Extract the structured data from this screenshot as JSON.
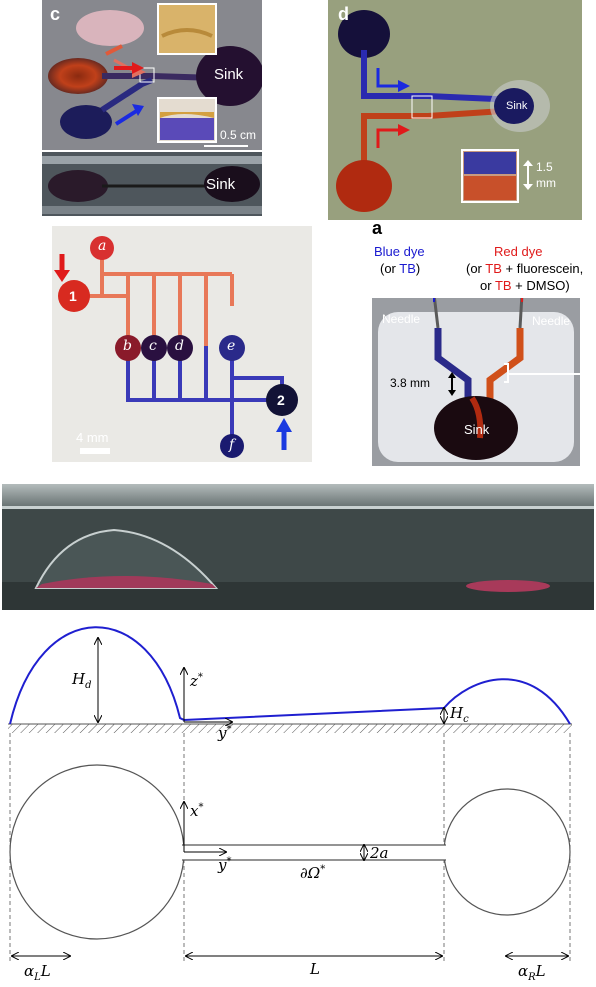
{
  "colors": {
    "blue_dye": "#1a1a9a",
    "red_dye": "#d23a1a",
    "sink": "#2a1030",
    "profile_line": "#1f1fd0",
    "axis": "#000000"
  },
  "panel_c": {
    "label": "c",
    "sink_label": "Sink",
    "scale_bar_text": "0.5 cm",
    "side_view_sink_label": "Sink"
  },
  "panel_d": {
    "label": "d",
    "sink_label": "Sink",
    "scale_value": "1.5",
    "scale_unit": "mm"
  },
  "panel_network": {
    "inlet_1": "1",
    "inlet_2": "2",
    "wells": [
      "a",
      "b",
      "c",
      "d",
      "e",
      "f"
    ],
    "scale_text": "4 mm"
  },
  "panel_a": {
    "label": "a",
    "blue_dye_title": "Blue dye",
    "blue_dye_sub_prefix": "(or ",
    "blue_dye_sub_tb": "TB",
    "blue_dye_sub_suffix": ")",
    "red_dye_title": "Red dye",
    "red_line2_prefix": "(or ",
    "red_line2_tb": "TB",
    "red_line2_suffix": " + fluorescein,",
    "red_line3_prefix": "or ",
    "red_line3_tb": "TB",
    "red_line3_suffix": " + DMSO)",
    "needle_left": "Needle",
    "needle_right": "Needle",
    "dimension": "3.8 mm",
    "sink_label": "Sink"
  },
  "schematic": {
    "H_d": "H",
    "H_d_sub": "d",
    "z_star": "z",
    "y_star_top": "y",
    "H_c": "H",
    "H_c_sub": "c",
    "x_star": "x",
    "y_star_bottom": "y",
    "two_a": "2a",
    "boundary": "∂Ω",
    "alpha_L": "α",
    "alpha_L_sub": "L",
    "L_left_suffix": "L",
    "L": "L",
    "alpha_R": "α",
    "alpha_R_sub": "R",
    "L_right_suffix": "L",
    "star": "*"
  }
}
